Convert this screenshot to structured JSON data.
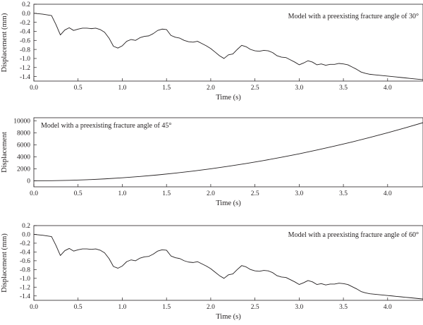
{
  "chart_data": [
    {
      "type": "line",
      "annotation": "Model with a preexisting fracture angle of 30°",
      "xlabel": "Time (s)",
      "ylabel": "Displacement (mm)",
      "xlim": [
        0,
        4.4
      ],
      "ylim": [
        -1.5,
        0.2
      ],
      "xticks": [
        0.0,
        0.5,
        1.0,
        1.5,
        2.0,
        2.5,
        3.0,
        3.5,
        4.0
      ],
      "xtick_labels": [
        "0.0",
        "0.5",
        "1.0",
        "1.5",
        "2.0",
        "2.5",
        "3.0",
        "3.5",
        "4.0"
      ],
      "yticks": [
        0.2,
        0.0,
        -0.2,
        -0.4,
        -0.6,
        -0.8,
        -1.0,
        -1.2,
        -1.4
      ],
      "ytick_labels": [
        "0.2",
        "0.0",
        "-0.2",
        "-0.4",
        "-0.6",
        "-0.8",
        "-1.0",
        "-1.2",
        "-1.4"
      ],
      "grid": false,
      "x": [
        0,
        0.1,
        0.2,
        0.25,
        0.3,
        0.35,
        0.4,
        0.45,
        0.5,
        0.55,
        0.6,
        0.65,
        0.7,
        0.75,
        0.8,
        0.85,
        0.9,
        0.95,
        1.0,
        1.05,
        1.1,
        1.15,
        1.2,
        1.25,
        1.3,
        1.35,
        1.4,
        1.45,
        1.5,
        1.55,
        1.6,
        1.65,
        1.7,
        1.75,
        1.8,
        1.85,
        1.9,
        1.95,
        2.0,
        2.05,
        2.1,
        2.15,
        2.2,
        2.25,
        2.3,
        2.35,
        2.4,
        2.45,
        2.5,
        2.55,
        2.6,
        2.65,
        2.7,
        2.75,
        2.8,
        2.85,
        2.9,
        2.95,
        3.0,
        3.05,
        3.1,
        3.15,
        3.2,
        3.25,
        3.3,
        3.35,
        3.4,
        3.45,
        3.5,
        3.55,
        3.6,
        3.65,
        3.7,
        3.75,
        3.8,
        3.85,
        3.9,
        3.95,
        4.0,
        4.05,
        4.1,
        4.15,
        4.2,
        4.25,
        4.3,
        4.35,
        4.4
      ],
      "y": [
        0.0,
        -0.02,
        -0.05,
        -0.25,
        -0.48,
        -0.37,
        -0.32,
        -0.38,
        -0.35,
        -0.33,
        -0.33,
        -0.34,
        -0.33,
        -0.36,
        -0.42,
        -0.55,
        -0.73,
        -0.77,
        -0.72,
        -0.62,
        -0.58,
        -0.6,
        -0.54,
        -0.51,
        -0.5,
        -0.45,
        -0.38,
        -0.35,
        -0.36,
        -0.49,
        -0.53,
        -0.55,
        -0.6,
        -0.63,
        -0.64,
        -0.62,
        -0.67,
        -0.72,
        -0.78,
        -0.86,
        -0.94,
        -1.0,
        -0.92,
        -0.9,
        -0.8,
        -0.71,
        -0.74,
        -0.8,
        -0.83,
        -0.84,
        -0.82,
        -0.83,
        -0.87,
        -0.94,
        -0.97,
        -0.98,
        -1.03,
        -1.08,
        -1.14,
        -1.1,
        -1.05,
        -1.08,
        -1.14,
        -1.12,
        -1.15,
        -1.13,
        -1.13,
        -1.11,
        -1.12,
        -1.14,
        -1.19,
        -1.24,
        -1.3,
        -1.33,
        -1.35,
        -1.36,
        -1.37,
        -1.38,
        -1.39,
        -1.4,
        -1.41,
        -1.42,
        -1.43,
        -1.44,
        -1.45,
        -1.46,
        -1.47
      ]
    },
    {
      "type": "line",
      "annotation": "Model with a preexisting fracture angle of 45°",
      "xlabel": "Time (s)",
      "ylabel": "Displacement",
      "xlim": [
        0,
        4.4
      ],
      "ylim": [
        -1000,
        10500
      ],
      "xticks": [
        0.0,
        0.5,
        1.0,
        1.5,
        2.0,
        2.5,
        3.0,
        3.5,
        4.0
      ],
      "xtick_labels": [
        "0.0",
        "0.5",
        "1.0",
        "1.5",
        "2.0",
        "2.5",
        "3.0",
        "3.5",
        "4.0"
      ],
      "yticks": [
        10000,
        8000,
        6000,
        4000,
        2000,
        0
      ],
      "ytick_labels": [
        "10000",
        "8000",
        "6000",
        "4000",
        "2000",
        "0"
      ],
      "grid": false,
      "x": [
        0,
        0.2,
        0.4,
        0.6,
        0.8,
        1.0,
        1.2,
        1.4,
        1.6,
        1.8,
        2.0,
        2.2,
        2.4,
        2.6,
        2.8,
        3.0,
        3.2,
        3.4,
        3.6,
        3.8,
        4.0,
        4.2,
        4.4
      ],
      "y": [
        0,
        20,
        80,
        180,
        320,
        500,
        720,
        980,
        1280,
        1620,
        2000,
        2420,
        2880,
        3380,
        3920,
        4500,
        5120,
        5780,
        6480,
        7220,
        8000,
        8820,
        9680
      ]
    },
    {
      "type": "line",
      "annotation": "Model with a preexisting fracture angle of 60°",
      "xlabel": "Time (s)",
      "ylabel": "Displacement (mm)",
      "xlim": [
        0,
        4.4
      ],
      "ylim": [
        -1.5,
        0.2
      ],
      "xticks": [
        0.0,
        0.5,
        1.0,
        1.5,
        2.0,
        2.5,
        3.0,
        3.5,
        4.0
      ],
      "xtick_labels": [
        "0.0",
        "0.5",
        "1.0",
        "1.5",
        "2.0",
        "2.5",
        "3.0",
        "3.5",
        "4.0"
      ],
      "yticks": [
        0.2,
        0.0,
        -0.2,
        -0.4,
        -0.6,
        -0.8,
        -1.0,
        -1.2,
        -1.4
      ],
      "ytick_labels": [
        "0.2",
        "0.0",
        "-0.2",
        "-0.4",
        "-0.6",
        "-0.8",
        "-1.0",
        "-1.2",
        "-1.4"
      ],
      "grid": false,
      "x": [
        0,
        0.1,
        0.2,
        0.25,
        0.3,
        0.35,
        0.4,
        0.45,
        0.5,
        0.55,
        0.6,
        0.65,
        0.7,
        0.75,
        0.8,
        0.85,
        0.9,
        0.95,
        1.0,
        1.05,
        1.1,
        1.15,
        1.2,
        1.25,
        1.3,
        1.35,
        1.4,
        1.45,
        1.5,
        1.55,
        1.6,
        1.65,
        1.7,
        1.75,
        1.8,
        1.85,
        1.9,
        1.95,
        2.0,
        2.05,
        2.1,
        2.15,
        2.2,
        2.25,
        2.3,
        2.35,
        2.4,
        2.45,
        2.5,
        2.55,
        2.6,
        2.65,
        2.7,
        2.75,
        2.8,
        2.85,
        2.9,
        2.95,
        3.0,
        3.05,
        3.1,
        3.15,
        3.2,
        3.25,
        3.3,
        3.35,
        3.4,
        3.45,
        3.5,
        3.55,
        3.6,
        3.65,
        3.7,
        3.75,
        3.8,
        3.85,
        3.9,
        3.95,
        4.0,
        4.05,
        4.1,
        4.15,
        4.2,
        4.25,
        4.3,
        4.35,
        4.4
      ],
      "y": [
        0.0,
        -0.02,
        -0.05,
        -0.25,
        -0.48,
        -0.37,
        -0.32,
        -0.38,
        -0.35,
        -0.33,
        -0.33,
        -0.34,
        -0.33,
        -0.36,
        -0.42,
        -0.55,
        -0.73,
        -0.77,
        -0.72,
        -0.62,
        -0.58,
        -0.6,
        -0.54,
        -0.51,
        -0.5,
        -0.45,
        -0.38,
        -0.35,
        -0.36,
        -0.49,
        -0.53,
        -0.55,
        -0.6,
        -0.63,
        -0.64,
        -0.62,
        -0.67,
        -0.72,
        -0.78,
        -0.86,
        -0.94,
        -1.0,
        -0.92,
        -0.9,
        -0.8,
        -0.71,
        -0.74,
        -0.8,
        -0.83,
        -0.84,
        -0.82,
        -0.83,
        -0.87,
        -0.94,
        -0.97,
        -0.98,
        -1.03,
        -1.08,
        -1.14,
        -1.1,
        -1.05,
        -1.08,
        -1.14,
        -1.12,
        -1.15,
        -1.13,
        -1.13,
        -1.11,
        -1.12,
        -1.14,
        -1.19,
        -1.24,
        -1.3,
        -1.33,
        -1.35,
        -1.36,
        -1.37,
        -1.38,
        -1.39,
        -1.4,
        -1.41,
        -1.42,
        -1.43,
        -1.44,
        -1.45,
        -1.46,
        -1.47
      ]
    }
  ]
}
